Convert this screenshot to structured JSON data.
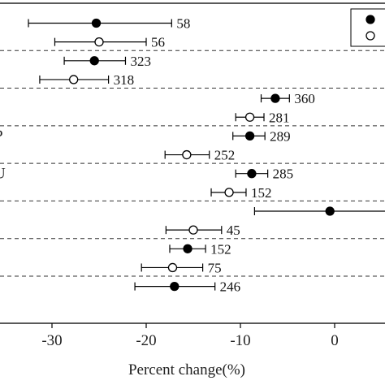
{
  "chart_data": {
    "type": "scatter",
    "title": "",
    "xlabel": "Percent change(%)",
    "ylabel": "",
    "xlim": [
      -35.5,
      5.5
    ],
    "x_ticks": [
      -30,
      -20,
      -10,
      0
    ],
    "x_tick_labels": [
      "-30",
      "-20",
      "-10",
      "0"
    ],
    "grid": false,
    "legend": "top-right (cropped, markers only)",
    "series": [
      {
        "marker": "filled",
        "points": [
          {
            "row": 1,
            "x": -25.3,
            "low": -32.5,
            "high": -17.3,
            "n": "58"
          },
          {
            "row": 3,
            "x": -25.5,
            "low": -28.7,
            "high": -22.2,
            "n": "323"
          },
          {
            "row": 5,
            "x": -6.3,
            "low": -7.8,
            "high": -4.8,
            "n": "360"
          },
          {
            "row": 7,
            "x": -9.0,
            "low": -10.8,
            "high": -7.4,
            "n": "289"
          },
          {
            "row": 9,
            "x": -8.8,
            "low": -10.5,
            "high": -7.1,
            "n": "285"
          },
          {
            "row": 11,
            "x": -0.5,
            "low": -8.5,
            "high": 6.0,
            "n": ""
          },
          {
            "row": 13,
            "x": -15.6,
            "low": -17.5,
            "high": -13.7,
            "n": "152"
          },
          {
            "row": 15,
            "x": -17.0,
            "low": -21.2,
            "high": -12.7,
            "n": "246"
          }
        ]
      },
      {
        "marker": "open",
        "points": [
          {
            "row": 2,
            "x": -25.0,
            "low": -29.7,
            "high": -20.0,
            "n": "56"
          },
          {
            "row": 4,
            "x": -27.7,
            "low": -31.3,
            "high": -24.0,
            "n": "318"
          },
          {
            "row": 6,
            "x": -9.0,
            "low": -10.5,
            "high": -7.5,
            "n": "281"
          },
          {
            "row": 8,
            "x": -15.7,
            "low": -18.0,
            "high": -13.3,
            "n": "252"
          },
          {
            "row": 10,
            "x": -11.2,
            "low": -13.1,
            "high": -9.4,
            "n": "152"
          },
          {
            "row": 12,
            "x": -15.0,
            "low": -17.9,
            "high": -12.0,
            "n": "45"
          },
          {
            "row": 14,
            "x": -17.2,
            "low": -20.5,
            "high": -14.0,
            "n": "75"
          }
        ]
      }
    ],
    "group_dividers_after_rows": [
      2,
      4,
      6,
      8,
      10,
      12,
      14
    ],
    "cropped_left_labels": [
      "P",
      "U"
    ]
  }
}
